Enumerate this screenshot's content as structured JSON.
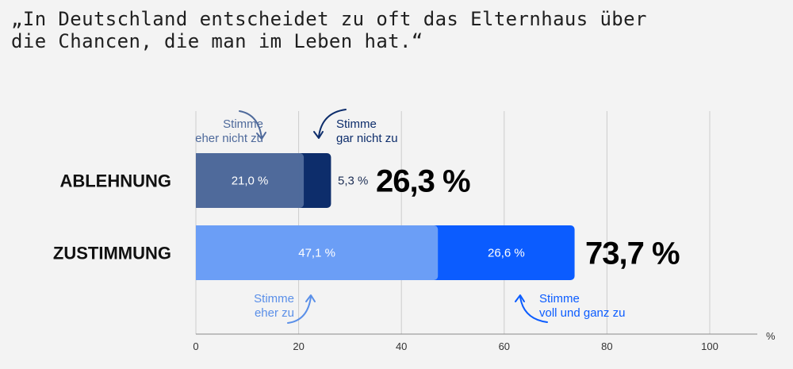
{
  "quote": "„In Deutschland entscheidet zu oft das Elternhaus über\n die Chancen, die man im Leben hat.“",
  "colors": {
    "eher_nicht_zu": "#4f6a9b",
    "gar_nicht_zu": "#0d2d6b",
    "eher_zu": "#6b9ef6",
    "voll_und_ganz_zu": "#0b5cff",
    "annotation_ablehnung": "#4f6a9b",
    "annotation_gar_nicht": "#0d2d6b",
    "annotation_eher_zu": "#5a8fe8",
    "annotation_voll": "#0b5cff",
    "grid": "#cccccc",
    "axis": "#888888"
  },
  "chart_data": {
    "type": "bar",
    "orientation": "horizontal",
    "stacked": true,
    "title": "„In Deutschland entscheidet zu oft das Elternhaus über die Chancen, die man im Leben hat.“",
    "xlabel": "%",
    "ylabel": "",
    "xlim": [
      0,
      110
    ],
    "xticks": [
      "0",
      "20",
      "40",
      "60",
      "80",
      "100"
    ],
    "tick_values": [
      0,
      20,
      40,
      60,
      80,
      100
    ],
    "grid": true,
    "categories": [
      "ABLEHNUNG",
      "ZUSTIMMUNG"
    ],
    "bars": [
      {
        "category": "ABLEHNUNG",
        "total_label": "26,3 %",
        "segments": [
          {
            "name": "Stimme eher nicht zu",
            "value": 21.0,
            "label": "21,0 %",
            "color_key": "eher_nicht_zu"
          },
          {
            "name": "Stimme gar nicht zu",
            "value": 5.3,
            "label": "5,3 %",
            "color_key": "gar_nicht_zu"
          }
        ]
      },
      {
        "category": "ZUSTIMMUNG",
        "total_label": "73,7 %",
        "segments": [
          {
            "name": "Stimme eher zu",
            "value": 47.1,
            "label": "47,1 %",
            "color_key": "eher_zu"
          },
          {
            "name": "Stimme voll und ganz zu",
            "value": 26.6,
            "label": "26,6 %",
            "color_key": "voll_und_ganz_zu"
          }
        ]
      }
    ],
    "annotations": [
      {
        "lines": [
          "Stimme",
          "eher nicht zu"
        ],
        "color_key": "annotation_ablehnung"
      },
      {
        "lines": [
          "Stimme",
          "gar nicht zu"
        ],
        "color_key": "annotation_gar_nicht"
      },
      {
        "lines": [
          "Stimme",
          "eher zu"
        ],
        "color_key": "annotation_eher_zu"
      },
      {
        "lines": [
          "Stimme",
          "voll und ganz zu"
        ],
        "color_key": "annotation_voll"
      }
    ]
  }
}
